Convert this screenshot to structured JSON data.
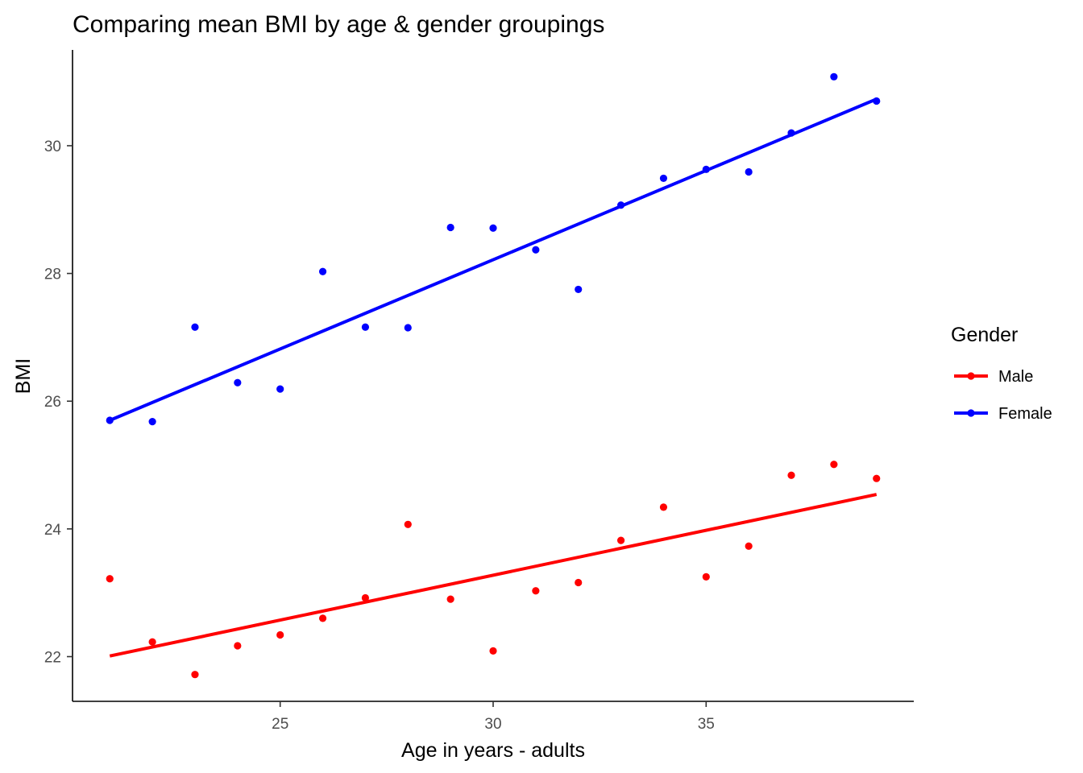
{
  "chart_data": {
    "type": "scatter",
    "title": "Comparing mean BMI by age & gender groupings",
    "xlabel": "Age in years - adults",
    "ylabel": "BMI",
    "xlim": [
      20.125,
      39.875
    ],
    "ylim": [
      21.3,
      31.5
    ],
    "x_ticks": [
      25,
      30,
      35
    ],
    "y_ticks": [
      22,
      24,
      26,
      28,
      30
    ],
    "grid": false,
    "legend": {
      "title": "Gender",
      "position": "right"
    },
    "series": [
      {
        "name": "Male",
        "color": "#ff0000",
        "x": [
          21,
          22,
          23,
          24,
          25,
          26,
          27,
          28,
          29,
          30,
          31,
          32,
          33,
          34,
          35,
          36,
          37,
          38,
          39
        ],
        "y": [
          23.22,
          22.23,
          21.72,
          22.17,
          22.34,
          22.6,
          22.92,
          24.07,
          22.9,
          22.09,
          23.03,
          23.16,
          23.82,
          24.34,
          23.25,
          23.73,
          24.84,
          25.01,
          24.79
        ],
        "fit": {
          "x": [
            21,
            39
          ],
          "y": [
            22.01,
            24.54
          ]
        }
      },
      {
        "name": "Female",
        "color": "#0000ff",
        "x": [
          21,
          22,
          23,
          24,
          25,
          26,
          27,
          28,
          29,
          30,
          31,
          32,
          33,
          34,
          35,
          36,
          37,
          38,
          39
        ],
        "y": [
          25.7,
          25.68,
          27.16,
          26.29,
          26.19,
          28.03,
          27.16,
          27.15,
          28.72,
          28.71,
          28.37,
          27.75,
          29.07,
          29.49,
          29.63,
          29.59,
          30.2,
          31.08,
          30.7
        ],
        "fit": {
          "x": [
            21,
            39
          ],
          "y": [
            25.7,
            30.73
          ]
        }
      }
    ]
  }
}
